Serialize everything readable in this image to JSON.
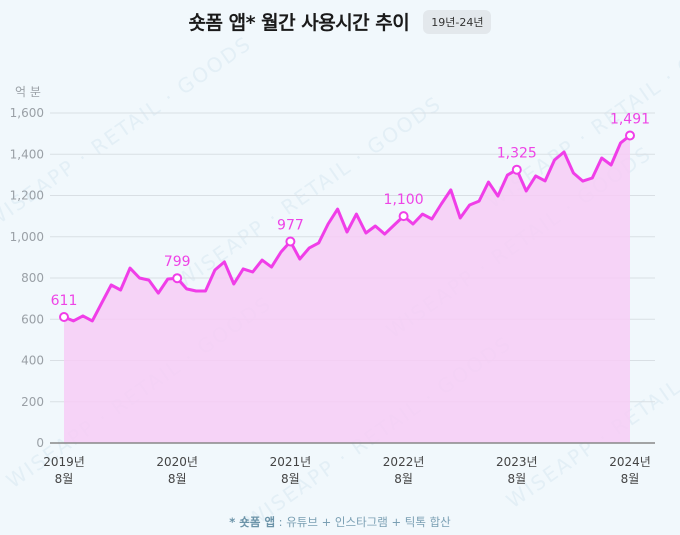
{
  "header": {
    "title": "숏폼 앱* 월간 사용시간 추이",
    "badge": "19년-24년"
  },
  "y_unit": "억 분",
  "footnote": {
    "prefix": "* 숏폼 앱",
    "text": " : 유튜브 + 인스타그램 + 틱톡 합산"
  },
  "watermark": "WISEAPP · RETAIL · GOODS",
  "colors": {
    "line": "#f03ee8",
    "area": "#f7cdf6",
    "label": "#ee44e6",
    "background": "#f1f8fc",
    "grid": "#d9dfe4",
    "axis": "#888888"
  },
  "chart_data": {
    "type": "area",
    "title": "숏폼 앱* 월간 사용시간 추이",
    "subtitle": "19년-24년",
    "xlabel": "",
    "ylabel": "억 분",
    "ylim": [
      0,
      1600
    ],
    "yticks": [
      0,
      200,
      400,
      600,
      800,
      1000,
      1200,
      1400,
      1600
    ],
    "ytick_labels": [
      "0",
      "200",
      "400",
      "600",
      "800",
      "1,000",
      "1,200",
      "1,400",
      "1,600"
    ],
    "xtick_labels": [
      {
        "index": 0,
        "line1": "2019년",
        "line2": "8월"
      },
      {
        "index": 12,
        "line1": "2020년",
        "line2": "8월"
      },
      {
        "index": 24,
        "line1": "2021년",
        "line2": "8월"
      },
      {
        "index": 36,
        "line1": "2022년",
        "line2": "8월"
      },
      {
        "index": 48,
        "line1": "2023년",
        "line2": "8월"
      },
      {
        "index": 60,
        "line1": "2024년",
        "line2": "8월"
      }
    ],
    "grid": true,
    "legend": null,
    "series": [
      {
        "name": "숏폼 앱 월간 사용시간 (억 분)",
        "x_start": "2019-08",
        "x_end": "2024-08",
        "values": [
          611,
          592,
          616,
          592,
          679,
          766,
          742,
          848,
          800,
          790,
          727,
          795,
          799,
          747,
          737,
          737,
          839,
          878,
          771,
          844,
          829,
          887,
          853,
          926,
          977,
          892,
          946,
          970,
          1062,
          1134,
          1023,
          1110,
          1018,
          1052,
          1013,
          1057,
          1100,
          1062,
          1110,
          1086,
          1159,
          1227,
          1091,
          1154,
          1173,
          1265,
          1197,
          1299,
          1325,
          1222,
          1295,
          1271,
          1372,
          1411,
          1309,
          1270,
          1285,
          1382,
          1348,
          1455,
          1491
        ]
      }
    ],
    "annotations": [
      {
        "index": 0,
        "label": "611"
      },
      {
        "index": 12,
        "label": "799"
      },
      {
        "index": 24,
        "label": "977"
      },
      {
        "index": 36,
        "label": "1,100"
      },
      {
        "index": 48,
        "label": "1,325"
      },
      {
        "index": 60,
        "label": "1,491"
      }
    ]
  }
}
